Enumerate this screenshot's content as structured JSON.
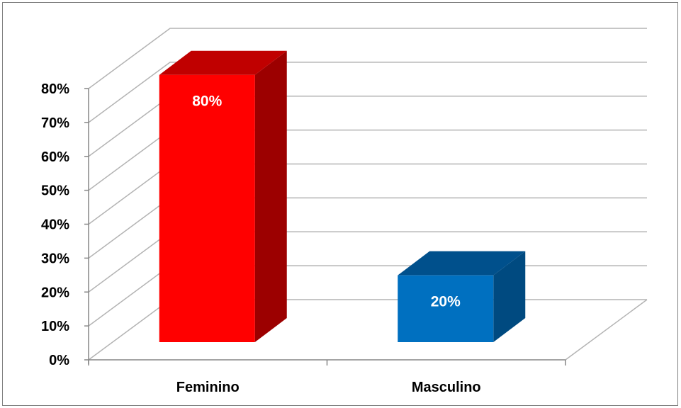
{
  "chart_data": {
    "type": "bar",
    "three_d": true,
    "categories": [
      "Feminino",
      "Masculino"
    ],
    "values": [
      0.8,
      0.2
    ],
    "data_labels": [
      "80%",
      "20%"
    ],
    "colors": [
      "#ff0000",
      "#0070c0"
    ],
    "side_colors": [
      "#9c0000",
      "#004a80"
    ],
    "top_colors": [
      "#c00000",
      "#00508c"
    ],
    "ylim": [
      0,
      0.8
    ],
    "y_ticks": [
      "0%",
      "10%",
      "20%",
      "30%",
      "40%",
      "50%",
      "60%",
      "70%",
      "80%"
    ],
    "grid": true,
    "legend": "none",
    "title": "",
    "xlabel": "",
    "ylabel": ""
  }
}
